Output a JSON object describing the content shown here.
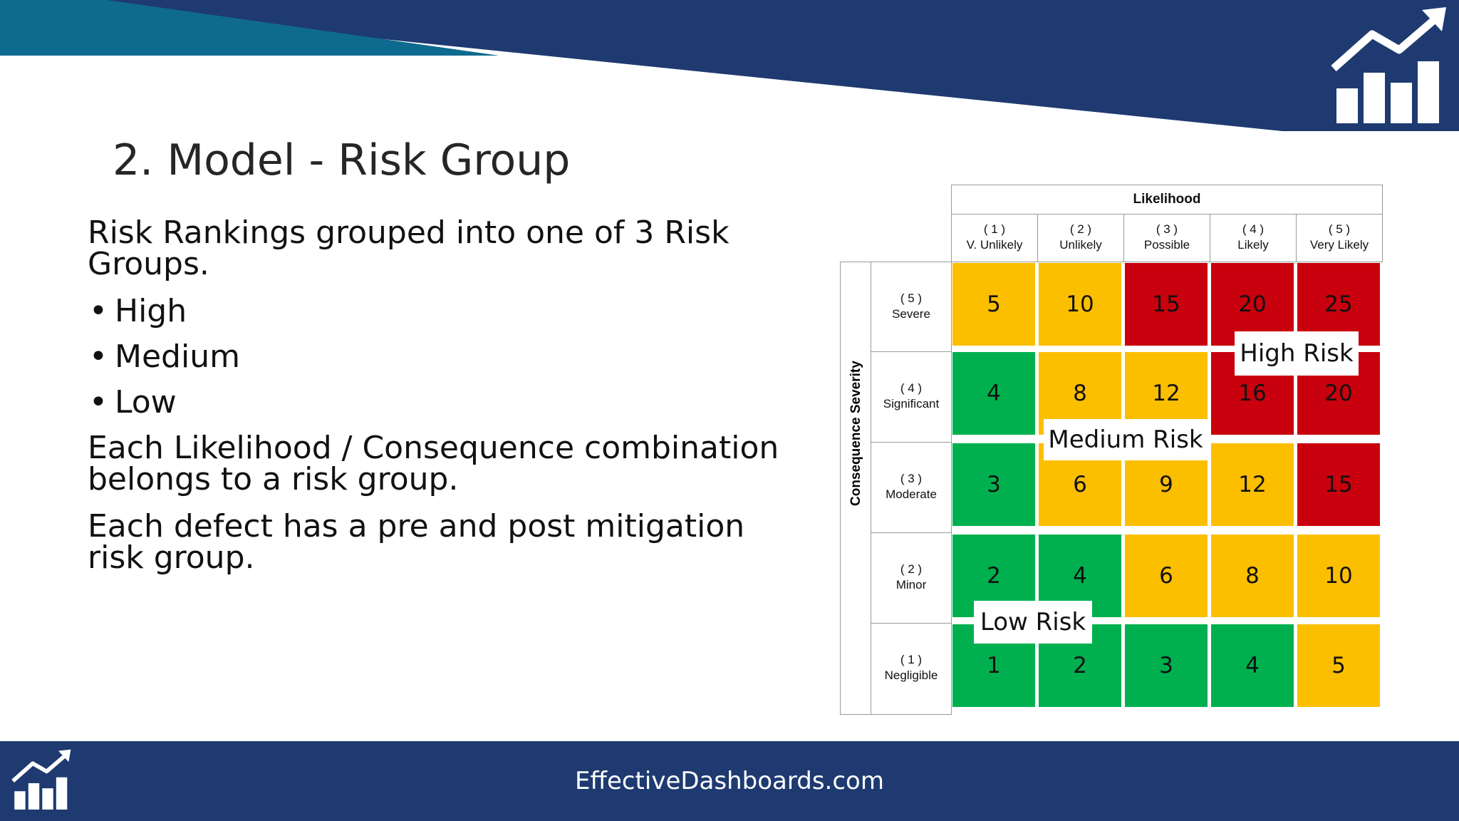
{
  "slide": {
    "title": "2. Model - Risk Group",
    "intro": "Risk Rankings grouped into one of 3 Risk Groups.",
    "bullets": [
      "High",
      "Medium",
      "Low"
    ],
    "paragraph1": "Each Likelihood / Consequence combination belongs to a risk group.",
    "paragraph2": "Each defect has a pre and post mitigation risk group.",
    "footer": "EffectiveDashboards.com",
    "logo_icon": "bar-chart-trend-icon"
  },
  "matrix": {
    "likelihood_label": "Likelihood",
    "severity_label": "Consequence Severity",
    "columns": [
      {
        "num": "( 1 )",
        "label": "V. Unlikely"
      },
      {
        "num": "( 2 )",
        "label": "Unlikely"
      },
      {
        "num": "( 3 )",
        "label": "Possible"
      },
      {
        "num": "( 4 )",
        "label": "Likely"
      },
      {
        "num": "( 5 )",
        "label": "Very Likely"
      }
    ],
    "rows": [
      {
        "num": "( 5 )",
        "label": "Severe",
        "values": [
          "5",
          "10",
          "15",
          "20",
          "25"
        ],
        "groups": [
          "M",
          "M",
          "H",
          "H",
          "H"
        ]
      },
      {
        "num": "( 4 )",
        "label": "Significant",
        "values": [
          "4",
          "8",
          "12",
          "16",
          "20"
        ],
        "groups": [
          "L",
          "M",
          "M",
          "H",
          "H"
        ]
      },
      {
        "num": "( 3 )",
        "label": "Moderate",
        "values": [
          "3",
          "6",
          "9",
          "12",
          "15"
        ],
        "groups": [
          "L",
          "M",
          "M",
          "M",
          "H"
        ]
      },
      {
        "num": "( 2 )",
        "label": "Minor",
        "values": [
          "2",
          "4",
          "6",
          "8",
          "10"
        ],
        "groups": [
          "L",
          "L",
          "M",
          "M",
          "M"
        ]
      },
      {
        "num": "( 1 )",
        "label": "Negligible",
        "values": [
          "1",
          "2",
          "3",
          "4",
          "5"
        ],
        "groups": [
          "L",
          "L",
          "L",
          "L",
          "M"
        ]
      }
    ],
    "colors": {
      "H": "#c9000d",
      "M": "#fcbf00",
      "L": "#00b04f"
    },
    "badges": {
      "high": "High Risk",
      "medium": "Medium Risk",
      "low": "Low Risk"
    }
  }
}
